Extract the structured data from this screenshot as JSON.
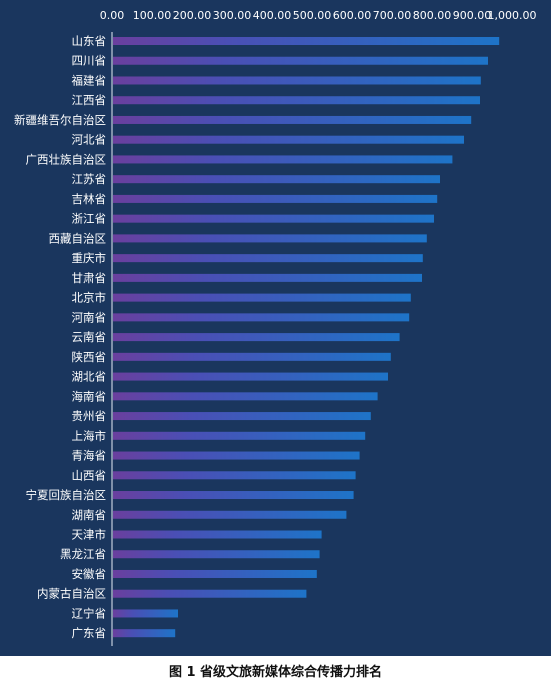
{
  "chart_data": {
    "type": "bar",
    "orientation": "horizontal",
    "categories": [
      "山东省",
      "四川省",
      "福建省",
      "江西省",
      "新疆维吾尔自治区",
      "河北省",
      "广西壮族自治区",
      "江苏省",
      "吉林省",
      "浙江省",
      "西藏自治区",
      "重庆市",
      "甘肃省",
      "北京市",
      "河南省",
      "云南省",
      "陕西省",
      "湖北省",
      "海南省",
      "贵州省",
      "上海市",
      "青海省",
      "山西省",
      "宁夏回族自治区",
      "湖南省",
      "天津市",
      "黑龙江省",
      "安徽省",
      "内蒙古自治区",
      "辽宁省",
      "广东省"
    ],
    "values": [
      968,
      940,
      922,
      920,
      898,
      880,
      851,
      820,
      813,
      805,
      787,
      777,
      775,
      747,
      743,
      719,
      697,
      690,
      664,
      647,
      633,
      619,
      609,
      604,
      586,
      524,
      519,
      512,
      486,
      165,
      158
    ],
    "xticks": [
      "0.00",
      "100.00",
      "200.00",
      "300.00",
      "400.00",
      "500.00",
      "600.00",
      "700.00",
      "800.00",
      "900.00",
      "1,000.00"
    ],
    "xlim": [
      0,
      1000
    ],
    "axis_position": "top",
    "grid": false,
    "colors": {
      "bar_start": "#6a3f9e",
      "bar_mid": "#4a4fb5",
      "bar_end": "#1e74c8",
      "background": "#1a365e",
      "text": "#ffffff"
    }
  },
  "caption": "图 1  省级文旅新媒体综合传播力排名"
}
